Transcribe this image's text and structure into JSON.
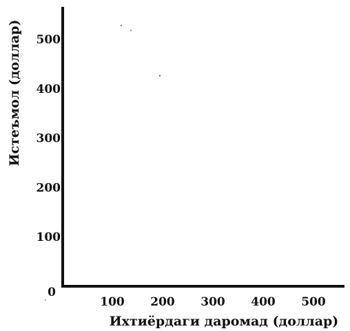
{
  "chart_data": {
    "type": "line",
    "title": "",
    "xlabel": "Ихтиёрдаги даромад (доллар)",
    "ylabel": "Истеъмол (доллар)",
    "x_ticks": [
      100,
      200,
      300,
      400,
      500
    ],
    "y_ticks": [
      0,
      100,
      200,
      300,
      400,
      500
    ],
    "xlim": [
      0,
      560
    ],
    "ylim": [
      0,
      560
    ],
    "grid": false,
    "series": []
  },
  "colors": {
    "axis": "#111111",
    "background": "#ffffff"
  }
}
